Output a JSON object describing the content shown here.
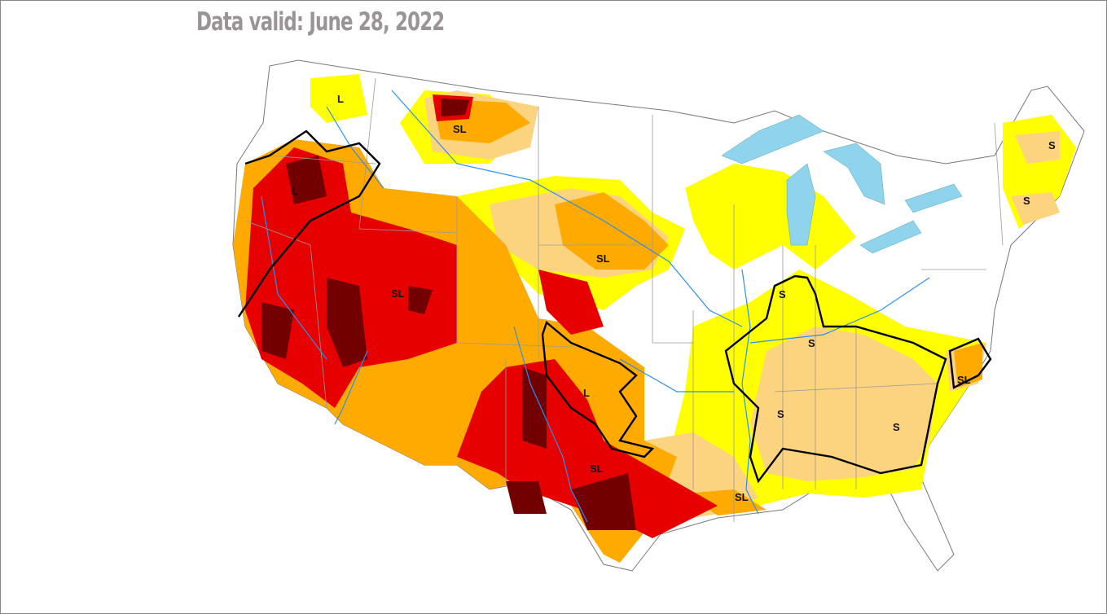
{
  "title": "Data valid: June 28, 2022",
  "legend_colors": {
    "D0": "#FFFF00",
    "D1": "#FCD37F",
    "D2": "#FFAA00",
    "D3": "#E60000",
    "D4": "#730000",
    "water": "#8FD3EC",
    "rivers": "#2A8FF0",
    "impact_boundary": "#000000"
  },
  "impact_labels": [
    "L",
    "SL",
    "L",
    "SL",
    "SL",
    "S",
    "S",
    "L",
    "SL",
    "S",
    "S",
    "SL",
    "SL",
    "S",
    "S"
  ]
}
